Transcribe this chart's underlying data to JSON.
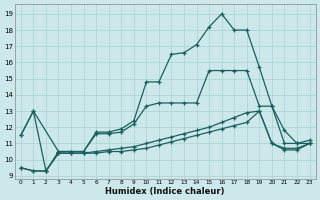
{
  "xlabel": "Humidex (Indice chaleur)",
  "bg_color": "#cce8ea",
  "grid_color": "#aad0d4",
  "line_color": "#1a6060",
  "xlim": [
    -0.5,
    23.5
  ],
  "ylim": [
    8.8,
    19.6
  ],
  "xticks": [
    0,
    1,
    2,
    3,
    4,
    5,
    6,
    7,
    8,
    9,
    10,
    11,
    12,
    13,
    14,
    15,
    16,
    17,
    18,
    19,
    20,
    21,
    22,
    23
  ],
  "yticks": [
    9,
    10,
    11,
    12,
    13,
    14,
    15,
    16,
    17,
    18,
    19
  ],
  "line1_x": [
    0,
    1,
    2,
    3,
    4,
    5,
    6,
    7,
    8,
    9,
    10,
    11,
    12,
    13,
    14,
    15,
    16,
    17,
    18,
    19,
    20,
    21,
    22,
    23
  ],
  "line1_y": [
    11.5,
    13.0,
    9.3,
    10.5,
    10.5,
    10.5,
    11.7,
    11.7,
    11.9,
    12.4,
    14.8,
    14.8,
    16.5,
    16.6,
    17.1,
    18.2,
    19.0,
    18.0,
    18.0,
    15.7,
    13.3,
    11.8,
    11.0,
    11.2
  ],
  "line2_x": [
    0,
    1,
    3,
    4,
    5,
    6,
    7,
    8,
    9,
    10,
    11,
    12,
    13,
    14,
    15,
    16,
    17,
    18,
    19,
    20,
    21,
    22,
    23
  ],
  "line2_y": [
    11.5,
    13.0,
    10.5,
    10.5,
    10.5,
    11.6,
    11.6,
    11.7,
    12.2,
    13.3,
    13.5,
    13.5,
    13.5,
    13.5,
    15.5,
    15.5,
    15.5,
    15.5,
    13.3,
    13.3,
    11.0,
    11.0,
    11.0
  ],
  "line3_x": [
    0,
    1,
    2,
    3,
    4,
    5,
    6,
    7,
    8,
    9,
    10,
    11,
    12,
    13,
    14,
    15,
    16,
    17,
    18,
    19,
    20,
    21,
    22,
    23
  ],
  "line3_y": [
    9.5,
    9.3,
    9.3,
    10.4,
    10.4,
    10.4,
    10.5,
    10.6,
    10.7,
    10.8,
    11.0,
    11.2,
    11.4,
    11.6,
    11.8,
    12.0,
    12.3,
    12.6,
    12.9,
    13.0,
    11.0,
    10.7,
    10.7,
    11.0
  ],
  "line4_x": [
    0,
    1,
    2,
    3,
    4,
    5,
    6,
    7,
    8,
    9,
    10,
    11,
    12,
    13,
    14,
    15,
    16,
    17,
    18,
    19,
    20,
    21,
    22,
    23
  ],
  "line4_y": [
    9.5,
    9.3,
    9.3,
    10.4,
    10.4,
    10.4,
    10.4,
    10.5,
    10.5,
    10.6,
    10.7,
    10.9,
    11.1,
    11.3,
    11.5,
    11.7,
    11.9,
    12.1,
    12.3,
    13.0,
    11.0,
    10.6,
    10.6,
    11.0
  ]
}
